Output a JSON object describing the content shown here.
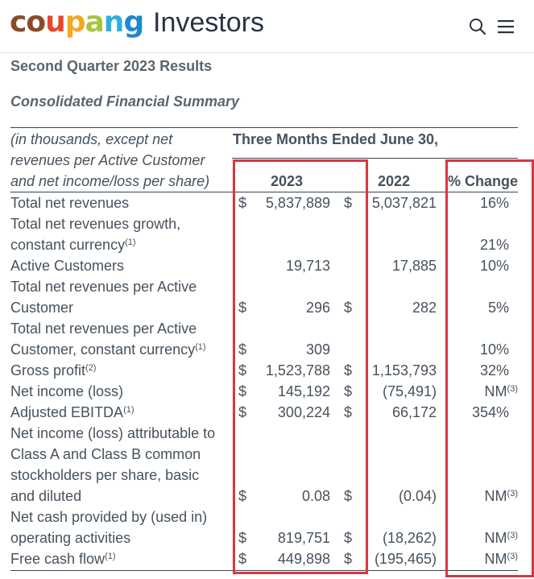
{
  "header": {
    "logo_text": "coupang",
    "logo_colors": [
      "#8b4a2b",
      "#e9452a",
      "#f5a623",
      "#a8c43c",
      "#2bb0e0",
      "#1e88d0"
    ],
    "brand_suffix": "Investors",
    "search_icon": "search-icon",
    "menu_icon": "hamburger-menu-icon"
  },
  "report_title": "Second Quarter 2023 Results",
  "summary_title": "Consolidated Financial Summary",
  "table": {
    "caption_lines": [
      "(in thousands, except net",
      "revenues per Active Customer",
      "and net income/loss per share)"
    ],
    "period_header": "Three Months Ended June 30,",
    "columns": [
      "2023",
      "2022",
      "% Change"
    ],
    "rows": [
      {
        "label": [
          "Total net revenues"
        ],
        "sup": "",
        "cur23": "$",
        "v23": "5,837,889",
        "cur22": "$",
        "v22": "5,037,821",
        "pct": "16%",
        "pct_sup": ""
      },
      {
        "label": [
          "Total net revenues growth,",
          "constant currency"
        ],
        "sup": "(1)",
        "cur23": "",
        "v23": "",
        "cur22": "",
        "v22": "",
        "pct": "21%",
        "pct_sup": ""
      },
      {
        "label": [
          "Active Customers"
        ],
        "sup": "",
        "cur23": "",
        "v23": "19,713",
        "cur22": "",
        "v22": "17,885",
        "pct": "10%",
        "pct_sup": ""
      },
      {
        "label": [
          "Total net revenues per Active",
          "Customer"
        ],
        "sup": "",
        "cur23": "$",
        "v23": "296",
        "cur22": "$",
        "v22": "282",
        "pct": "5%",
        "pct_sup": ""
      },
      {
        "label": [
          "Total net revenues per Active",
          "Customer, constant currency"
        ],
        "sup": "(1)",
        "cur23": "$",
        "v23": "309",
        "cur22": "",
        "v22": "",
        "pct": "10%",
        "pct_sup": ""
      },
      {
        "label": [
          "Gross profit"
        ],
        "sup": "(2)",
        "cur23": "$",
        "v23": "1,523,788",
        "cur22": "$",
        "v22": "1,153,793",
        "pct": "32%",
        "pct_sup": ""
      },
      {
        "label": [
          "Net income (loss)"
        ],
        "sup": "",
        "cur23": "$",
        "v23": "145,192",
        "cur22": "$",
        "v22": "(75,491)",
        "pct": "NM",
        "pct_sup": "(3)"
      },
      {
        "label": [
          "Adjusted EBITDA"
        ],
        "sup": "(1)",
        "cur23": "$",
        "v23": "300,224",
        "cur22": "$",
        "v22": "66,172",
        "pct": "354%",
        "pct_sup": ""
      },
      {
        "label": [
          "Net income (loss) attributable to",
          "Class A and Class B common",
          "stockholders per share, basic",
          "and diluted"
        ],
        "sup": "",
        "cur23": "$",
        "v23": "0.08",
        "cur22": "$",
        "v22": "(0.04)",
        "pct": "NM",
        "pct_sup": "(3)"
      },
      {
        "label": [
          "Net cash provided by (used in)",
          "operating activities"
        ],
        "sup": "",
        "cur23": "$",
        "v23": "819,751",
        "cur22": "$",
        "v22": "(18,262)",
        "pct": "NM",
        "pct_sup": "(3)"
      },
      {
        "label": [
          "Free cash flow"
        ],
        "sup": "(1)",
        "cur23": "$",
        "v23": "449,898",
        "cur22": "$",
        "v22": "(195,465)",
        "pct": "NM",
        "pct_sup": "(3)"
      }
    ]
  },
  "highlight_color": "#d9373f"
}
